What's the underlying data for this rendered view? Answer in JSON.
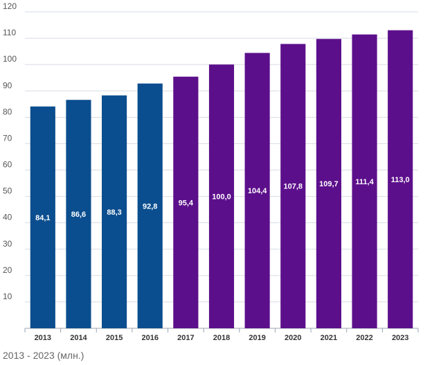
{
  "chart_data": {
    "type": "bar",
    "categories": [
      "2013",
      "2014",
      "2015",
      "2016",
      "2017",
      "2018",
      "2019",
      "2020",
      "2021",
      "2022",
      "2023"
    ],
    "values": [
      84.1,
      86.6,
      88.3,
      92.8,
      95.4,
      100.0,
      104.4,
      107.8,
      109.7,
      111.4,
      113.0
    ],
    "data_labels": [
      "84,1",
      "86,6",
      "88,3",
      "92,8",
      "95,4",
      "100,0",
      "104,4",
      "107,8",
      "109,7",
      "111,4",
      "113,0"
    ],
    "yticks": [
      10,
      20,
      30,
      40,
      50,
      60,
      70,
      80,
      90,
      100,
      110,
      120
    ],
    "ylim": [
      0,
      120
    ],
    "grid": true,
    "colors": [
      "#0b4e8f",
      "#0b4e8f",
      "#0b4e8f",
      "#0b4e8f",
      "#5c0f8b",
      "#5c0f8b",
      "#5c0f8b",
      "#5c0f8b",
      "#5c0f8b",
      "#5c0f8b",
      "#5c0f8b"
    ],
    "title": "",
    "xlabel": "",
    "ylabel": ""
  },
  "caption": "2013 - 2023 (млн.)"
}
